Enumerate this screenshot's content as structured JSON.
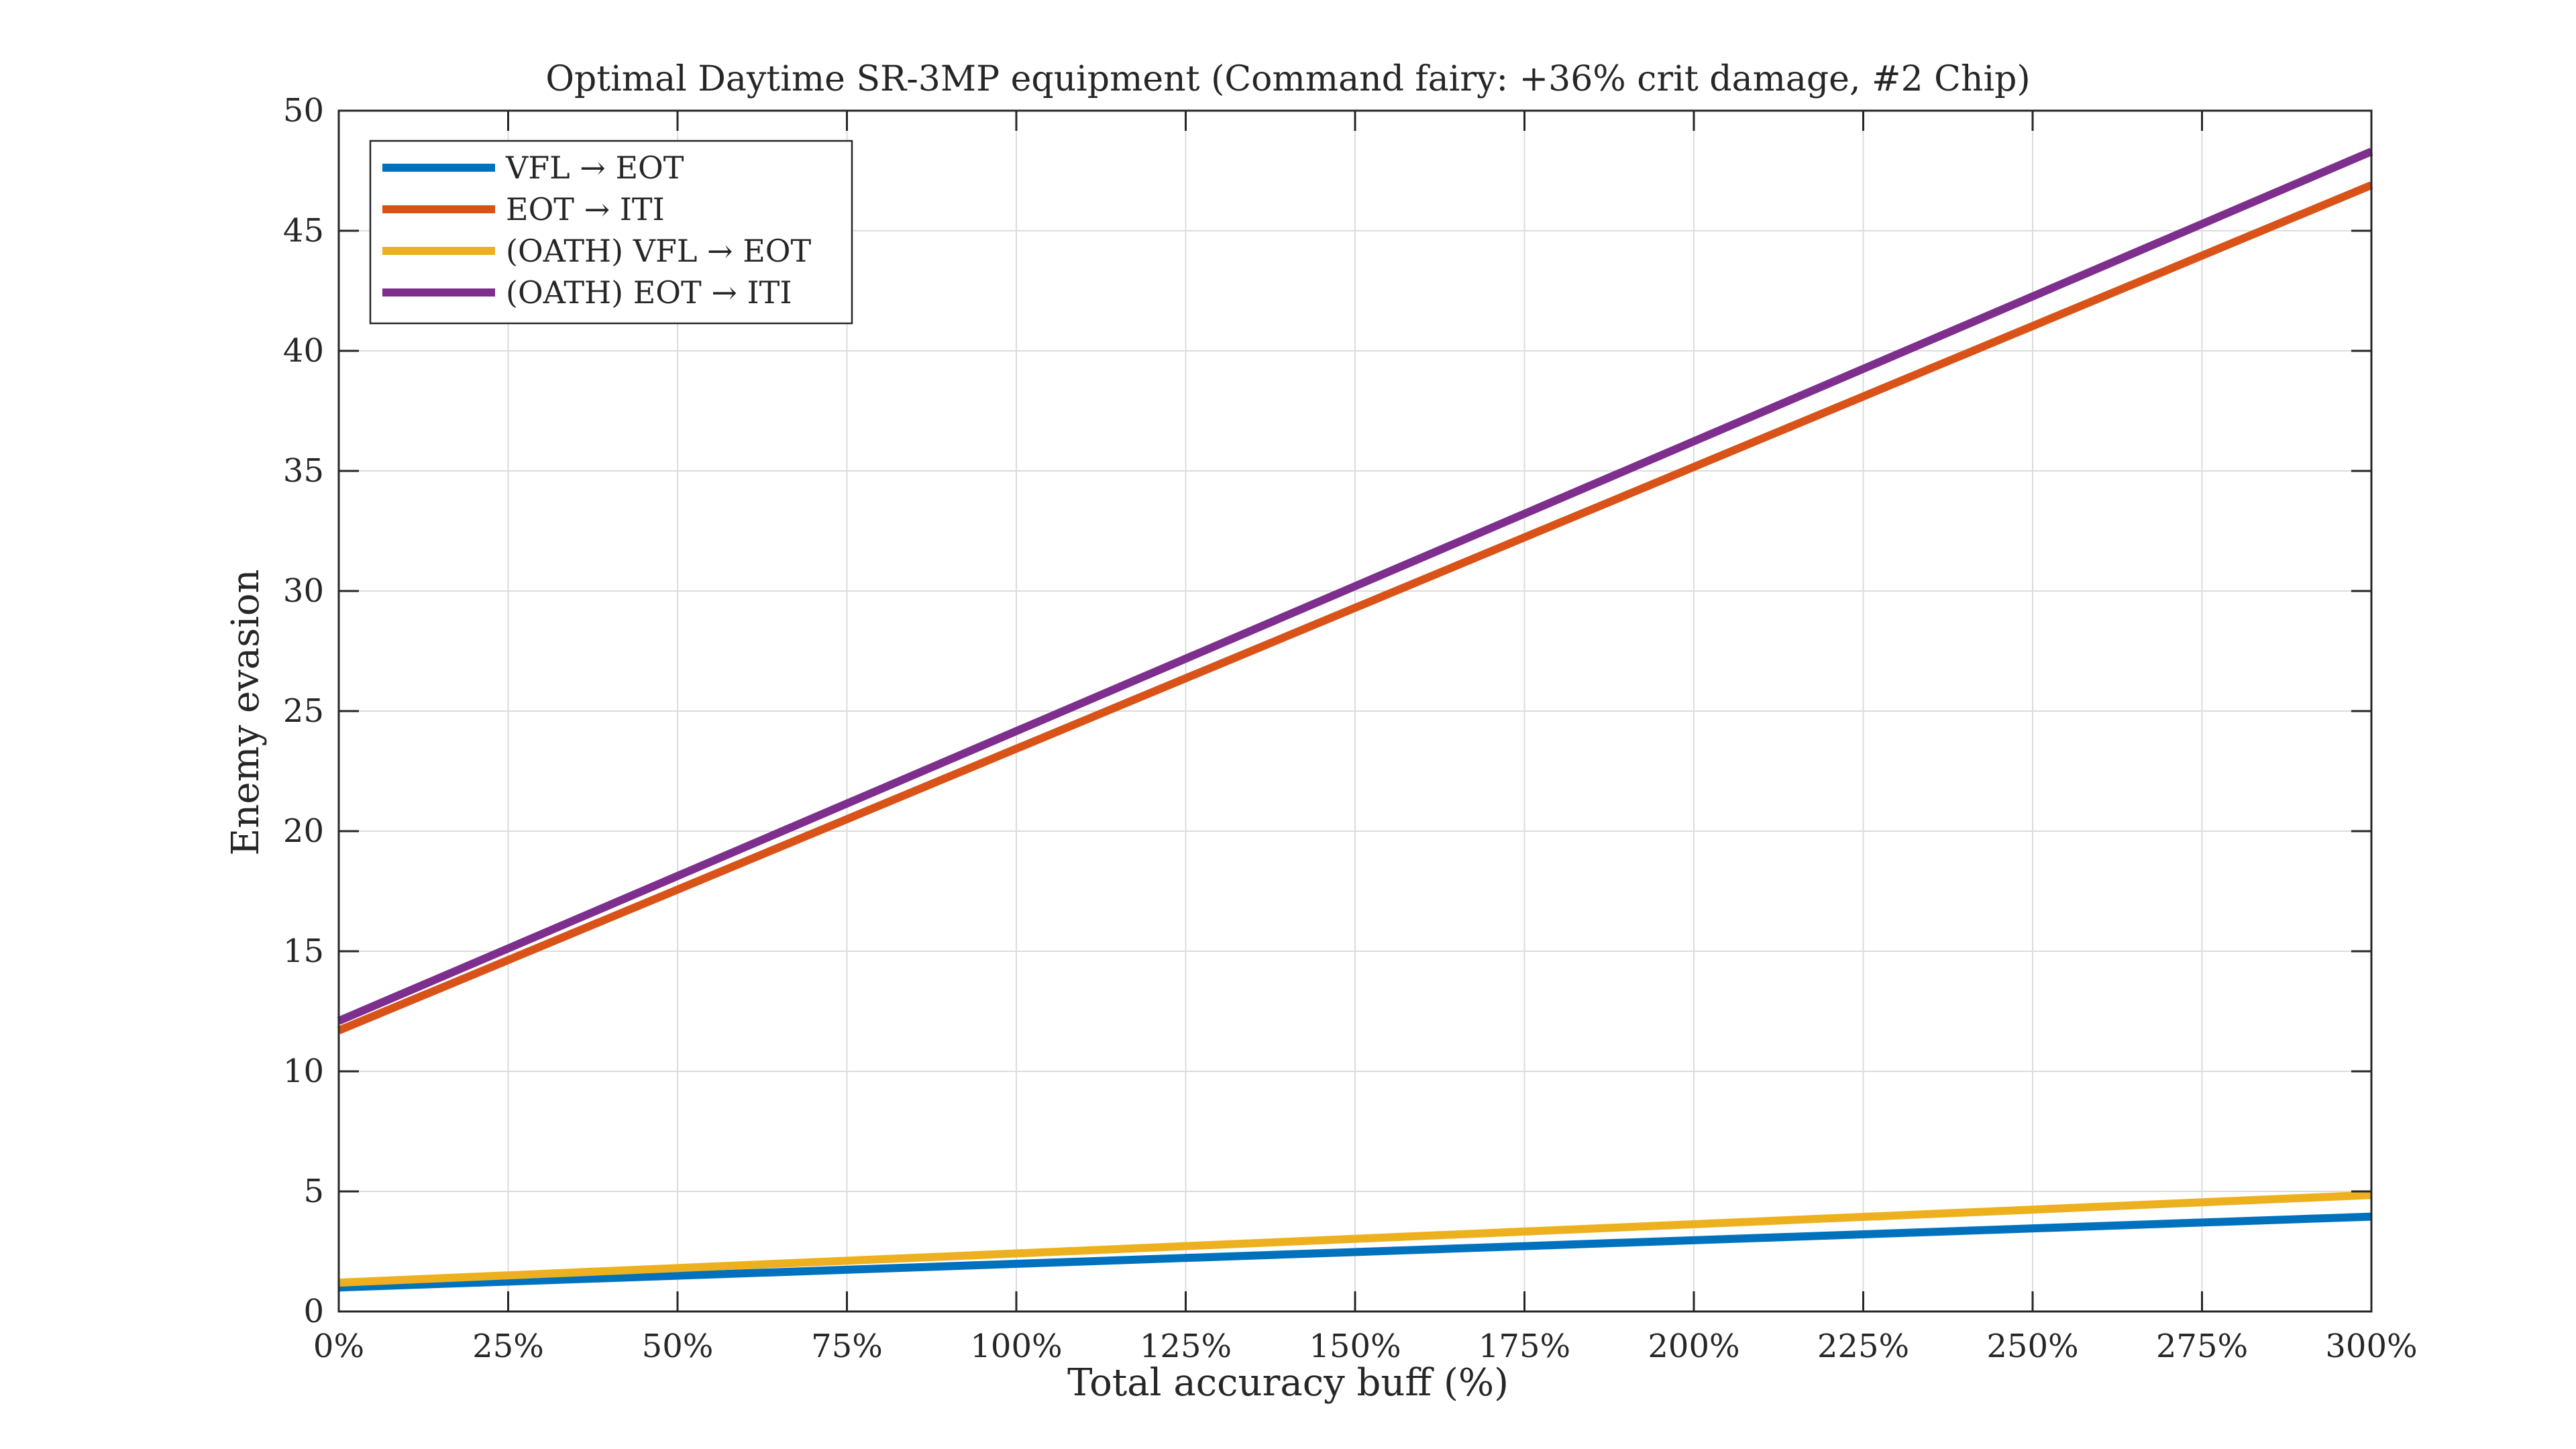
{
  "chart_data": {
    "type": "line",
    "title": "Optimal Daytime SR-3MP equipment (Command fairy: +36% crit damage, #2 Chip)",
    "xlabel": "Total accuracy buff (%)",
    "ylabel": "Enemy evasion",
    "xlim": [
      0,
      300
    ],
    "ylim": [
      0,
      50
    ],
    "x_ticks": [
      0,
      25,
      50,
      75,
      100,
      125,
      150,
      175,
      200,
      225,
      250,
      275,
      300
    ],
    "x_tick_labels": [
      "0%",
      "25%",
      "50%",
      "75%",
      "100%",
      "125%",
      "150%",
      "175%",
      "200%",
      "225%",
      "250%",
      "275%",
      "300%"
    ],
    "y_ticks": [
      0,
      5,
      10,
      15,
      20,
      25,
      30,
      35,
      40,
      45,
      50
    ],
    "y_tick_labels": [
      "0",
      "5",
      "10",
      "15",
      "20",
      "25",
      "30",
      "35",
      "40",
      "45",
      "50"
    ],
    "grid": true,
    "legend_position": "top-left",
    "x": [
      0,
      300
    ],
    "series": [
      {
        "name": "VFL → EOT",
        "color": "#0072BD",
        "values": [
          1.0,
          3.95
        ]
      },
      {
        "name": "EOT → ITI",
        "color": "#D95319",
        "values": [
          11.7,
          46.9
        ]
      },
      {
        "name": "(OATH) VFL → EOT",
        "color": "#EDB120",
        "values": [
          1.2,
          4.85
        ]
      },
      {
        "name": "(OATH) EOT → ITI",
        "color": "#7E2F8E",
        "values": [
          12.1,
          48.3
        ]
      }
    ]
  }
}
